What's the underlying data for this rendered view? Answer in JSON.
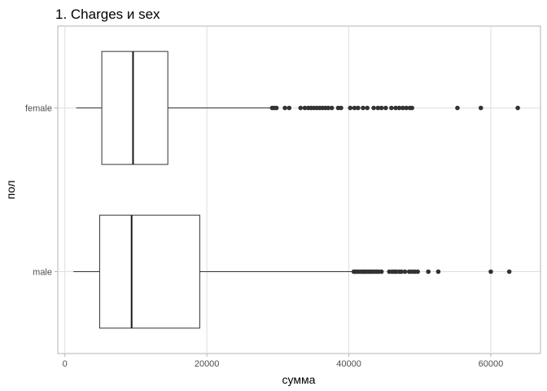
{
  "chart_data": {
    "type": "boxplot",
    "orientation": "horizontal",
    "title": "1. Charges и sex",
    "xlabel": "сумма",
    "ylabel": "пол",
    "xlim": [
      -1000,
      67000
    ],
    "xticks": [
      0,
      20000,
      40000,
      60000
    ],
    "xtick_labels": [
      "0",
      "20000",
      "40000",
      "60000"
    ],
    "grid": true,
    "categories": [
      "female",
      "male"
    ],
    "series": [
      {
        "category": "male",
        "whisker_low": 1200,
        "q1": 4900,
        "median": 9400,
        "q3": 19000,
        "whisker_high": 40600,
        "outliers": [
          40700,
          40900,
          41100,
          41400,
          41700,
          41900,
          42100,
          42300,
          42500,
          42800,
          43000,
          43300,
          43600,
          43900,
          44200,
          44600,
          45700,
          46100,
          46400,
          46700,
          47100,
          47400,
          47900,
          48500,
          48900,
          49300,
          49700,
          51200,
          52600,
          60000,
          62600
        ]
      },
      {
        "category": "female",
        "whisker_low": 1600,
        "q1": 5200,
        "median": 9600,
        "q3": 14500,
        "whisker_high": 29000,
        "outliers": [
          29200,
          29500,
          29800,
          31000,
          31600,
          33200,
          33800,
          34300,
          34700,
          35100,
          35500,
          35900,
          36300,
          36700,
          37100,
          37600,
          38500,
          38900,
          40200,
          40800,
          41300,
          42000,
          42600,
          43500,
          44100,
          44600,
          45200,
          46000,
          46600,
          47100,
          47600,
          48100,
          48600,
          48900,
          55300,
          58600,
          63800
        ]
      }
    ]
  }
}
